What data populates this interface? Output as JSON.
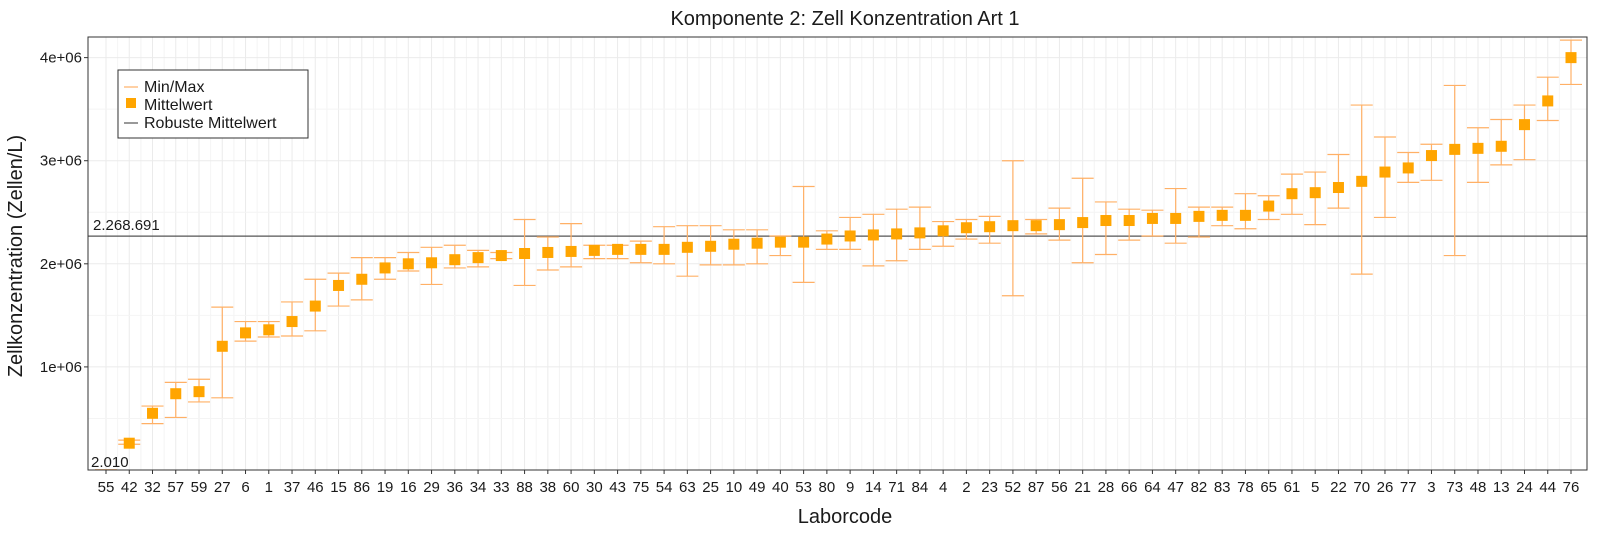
{
  "chart_data": {
    "type": "scatter",
    "title": "Komponente 2: Zell Konzentration Art 1",
    "xlabel": "Laborcode",
    "ylabel": "Zellkonzentration (Zellen/L)",
    "ylim": [
      0,
      4200000
    ],
    "y_ticks": [
      1000000,
      2000000,
      3000000,
      4000000
    ],
    "y_tick_labels": [
      "1e+06",
      "2e+06",
      "3e+06",
      "4e+06"
    ],
    "grid": true,
    "legend_position": "top-left",
    "legend": {
      "minmax": "Min/Max",
      "mean": "Mittelwert",
      "robust": "Robuste Mittelwert"
    },
    "robust_mean": 2268691,
    "robust_mean_label": "2.268.691",
    "corner_label": "2.010",
    "colors": {
      "marker": "#FFA500",
      "errorbar": "#FFB066",
      "robust_line": "#555555",
      "grid": "#ebebeb",
      "frame": "#333333"
    },
    "categories": [
      "55",
      "42",
      "32",
      "57",
      "59",
      "27",
      "6",
      "1",
      "37",
      "46",
      "15",
      "86",
      "19",
      "16",
      "29",
      "36",
      "34",
      "33",
      "88",
      "38",
      "60",
      "30",
      "43",
      "75",
      "54",
      "63",
      "25",
      "10",
      "49",
      "40",
      "53",
      "80",
      "9",
      "14",
      "71",
      "84",
      "4",
      "2",
      "23",
      "52",
      "87",
      "56",
      "21",
      "28",
      "66",
      "64",
      "47",
      "82",
      "83",
      "78",
      "65",
      "61",
      "5",
      "22",
      "70",
      "26",
      "77",
      "3",
      "73",
      "48",
      "13",
      "24",
      "44",
      "76"
    ],
    "series": [
      {
        "name": "Mittelwert",
        "values": [
          2010,
          260000,
          550000,
          740000,
          760000,
          1200000,
          1330000,
          1360000,
          1440000,
          1590000,
          1790000,
          1850000,
          1960000,
          2000000,
          2010000,
          2040000,
          2060000,
          2080000,
          2100000,
          2110000,
          2120000,
          2130000,
          2140000,
          2140000,
          2140000,
          2160000,
          2170000,
          2190000,
          2200000,
          2210000,
          2210000,
          2240000,
          2270000,
          2280000,
          2290000,
          2300000,
          2320000,
          2350000,
          2360000,
          2370000,
          2370000,
          2380000,
          2400000,
          2420000,
          2420000,
          2440000,
          2440000,
          2460000,
          2470000,
          2470000,
          2560000,
          2680000,
          2690000,
          2740000,
          2800000,
          2890000,
          2930000,
          3050000,
          3110000,
          3120000,
          3140000,
          3350000,
          3580000,
          4000000
        ]
      },
      {
        "name": "Min",
        "values": [
          2010,
          250000,
          450000,
          510000,
          660000,
          700000,
          1250000,
          1290000,
          1300000,
          1350000,
          1590000,
          1650000,
          1850000,
          1930000,
          1800000,
          1960000,
          1970000,
          2050000,
          1790000,
          1940000,
          1970000,
          2050000,
          2050000,
          2010000,
          2000000,
          1880000,
          1990000,
          1990000,
          2000000,
          2080000,
          1820000,
          2140000,
          2140000,
          1980000,
          2030000,
          2140000,
          2170000,
          2240000,
          2200000,
          1690000,
          2290000,
          2230000,
          2010000,
          2090000,
          2230000,
          2270000,
          2200000,
          2260000,
          2370000,
          2340000,
          2430000,
          2480000,
          2380000,
          2540000,
          1900000,
          2450000,
          2790000,
          2810000,
          2080000,
          2790000,
          2960000,
          3010000,
          3390000,
          3740000
        ]
      },
      {
        "name": "Max",
        "values": [
          2010,
          290000,
          620000,
          850000,
          880000,
          1580000,
          1440000,
          1440000,
          1630000,
          1850000,
          1910000,
          2060000,
          2060000,
          2110000,
          2160000,
          2180000,
          2130000,
          2110000,
          2430000,
          2260000,
          2390000,
          2180000,
          2180000,
          2220000,
          2360000,
          2370000,
          2370000,
          2330000,
          2330000,
          2270000,
          2750000,
          2320000,
          2450000,
          2480000,
          2530000,
          2550000,
          2410000,
          2430000,
          2460000,
          3000000,
          2430000,
          2540000,
          2830000,
          2600000,
          2530000,
          2520000,
          2730000,
          2550000,
          2550000,
          2680000,
          2660000,
          2870000,
          2890000,
          3060000,
          3540000,
          3230000,
          3080000,
          3160000,
          3730000,
          3320000,
          3400000,
          3540000,
          3810000,
          4170000
        ]
      }
    ]
  }
}
